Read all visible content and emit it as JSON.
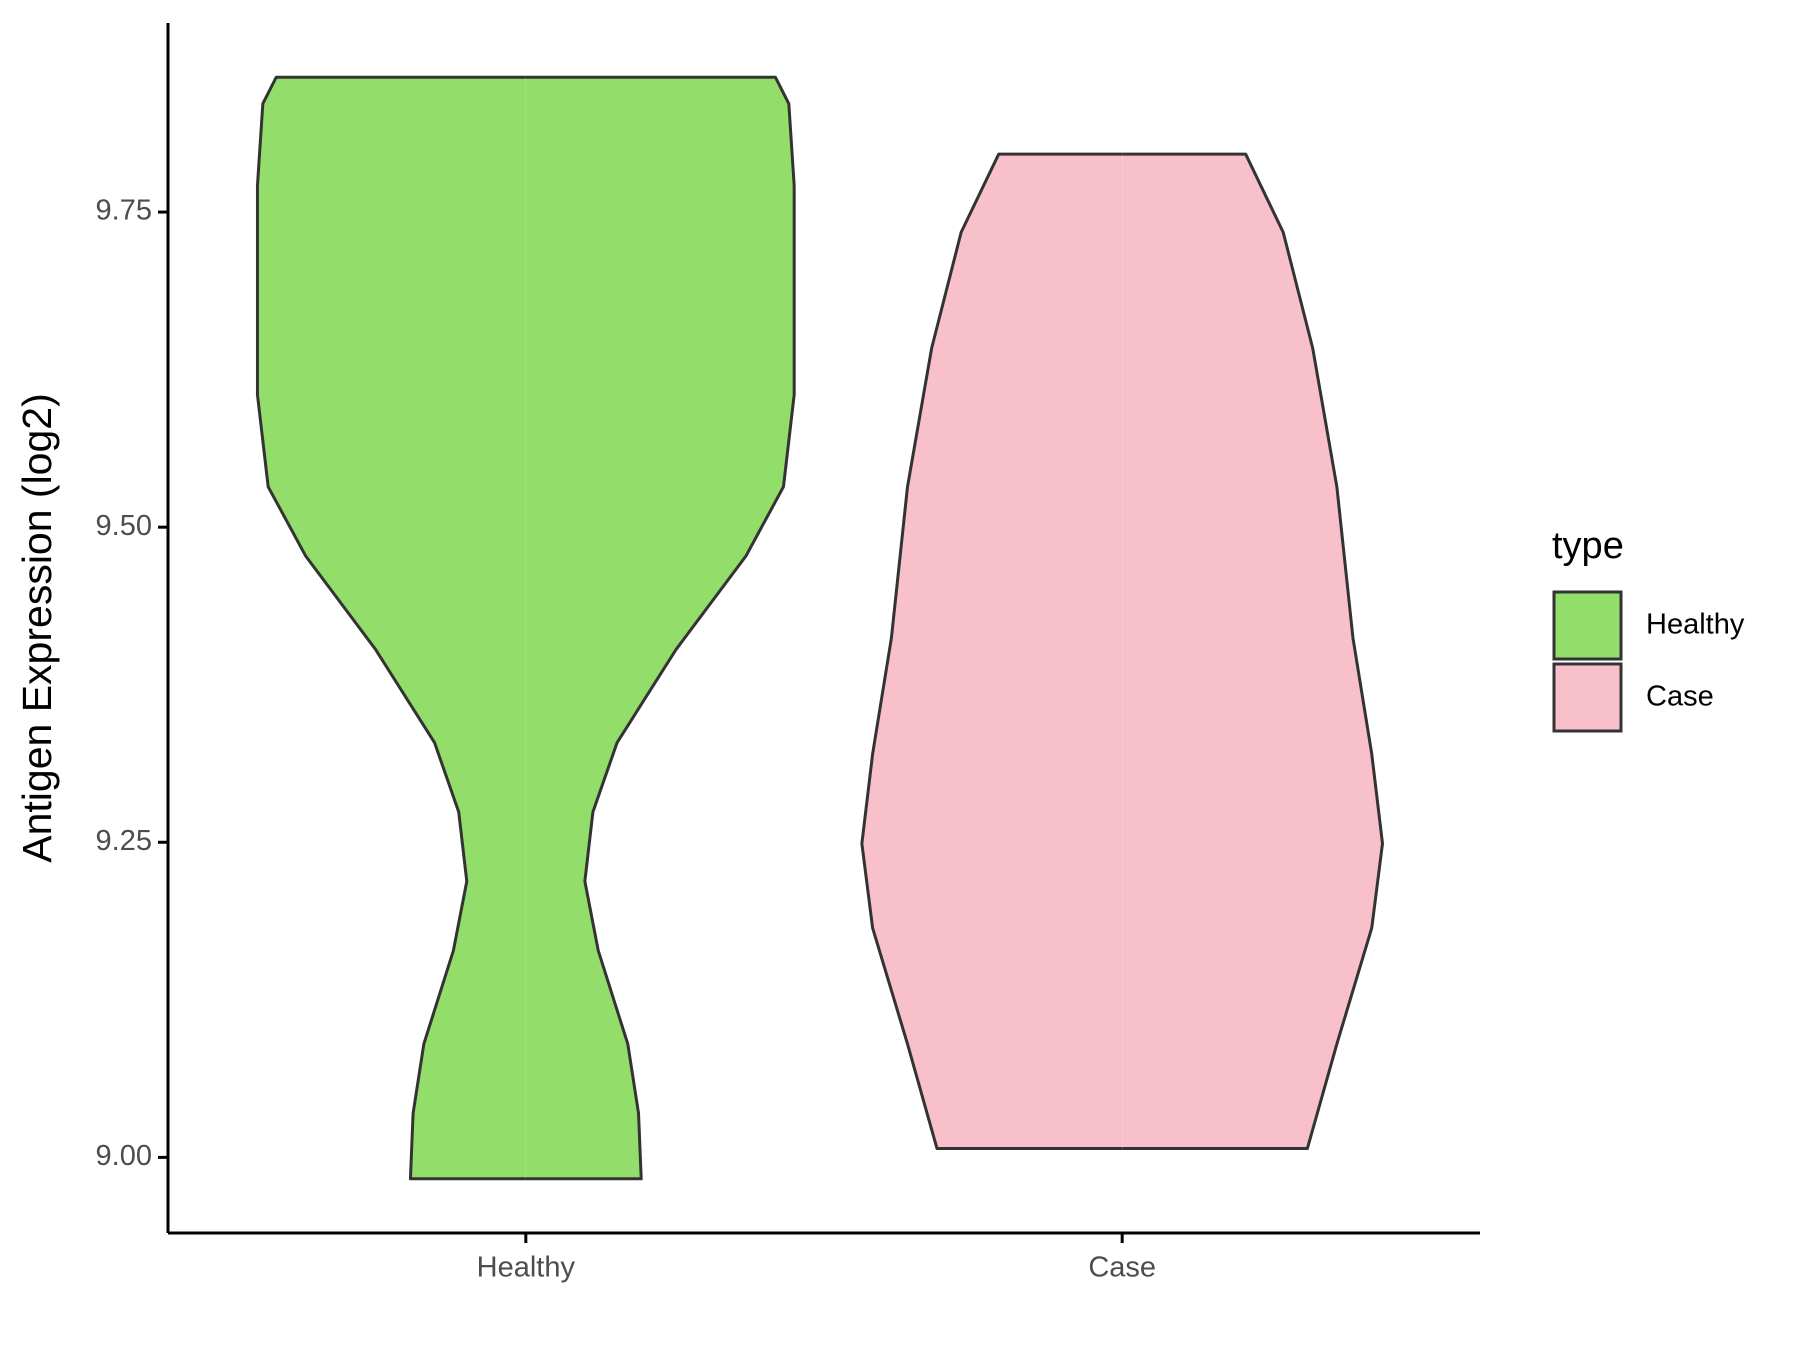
{
  "chart_data": {
    "type": "violin",
    "y_label": "Antigen Expression (log2)",
    "categories": [
      "Healthy",
      "Case"
    ],
    "legend_title": "type",
    "legend": "right",
    "series": [
      {
        "name": "Healthy",
        "color": "#93dd6b",
        "y": [
          9.857,
          9.836,
          9.771,
          9.688,
          9.605,
          9.532,
          9.477,
          9.403,
          9.329,
          9.274,
          9.219,
          9.164,
          9.09,
          9.035,
          8.983
        ],
        "density": [
          0.93,
          0.98,
          1.0,
          1.0,
          1.0,
          0.96,
          0.82,
          0.56,
          0.34,
          0.25,
          0.22,
          0.27,
          0.38,
          0.42,
          0.43
        ]
      },
      {
        "name": "Case",
        "color": "#f8c0cb",
        "y": [
          9.796,
          9.734,
          9.642,
          9.532,
          9.412,
          9.32,
          9.249,
          9.182,
          9.09,
          9.007
        ],
        "density": [
          0.46,
          0.6,
          0.71,
          0.8,
          0.86,
          0.93,
          0.97,
          0.93,
          0.8,
          0.69
        ]
      }
    ],
    "ylim": [
      8.94,
      9.9
    ],
    "yticks": [
      {
        "value": 9,
        "label": "9.00"
      },
      {
        "value": 9.25,
        "label": "9.25"
      },
      {
        "value": 9.5,
        "label": "9.50"
      },
      {
        "value": 9.75,
        "label": "9.75"
      }
    ]
  }
}
